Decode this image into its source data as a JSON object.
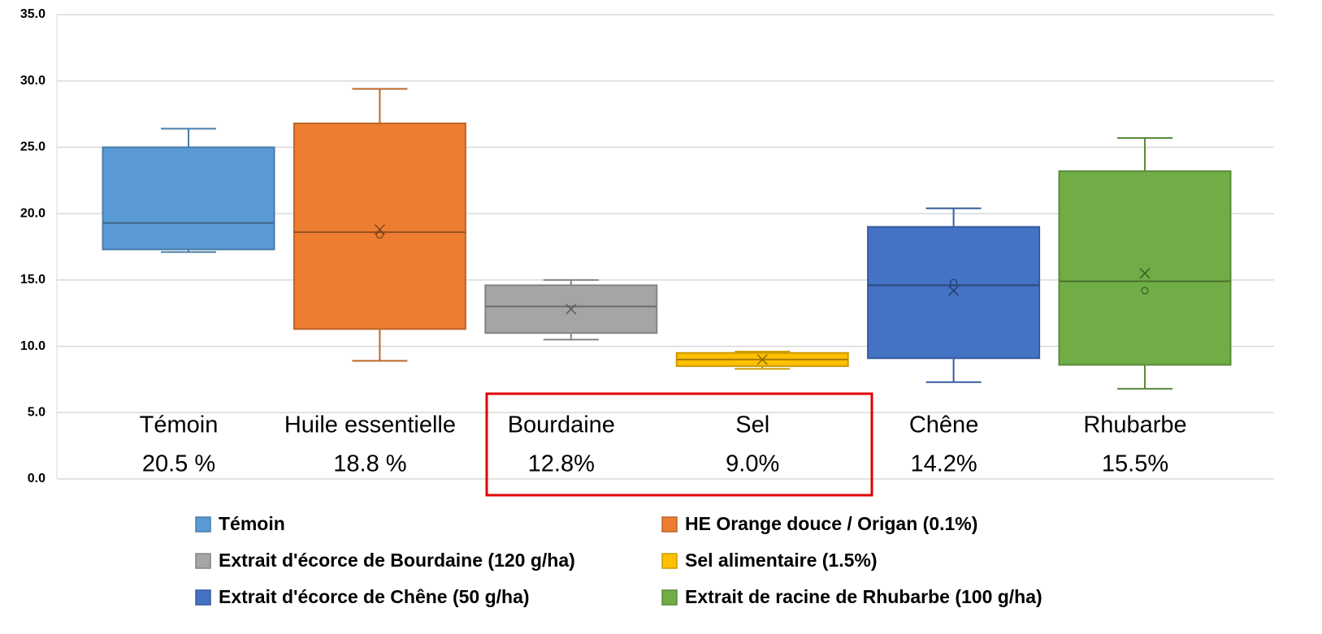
{
  "chart_data": {
    "type": "box",
    "ylim": [
      0,
      35
    ],
    "yticks": [
      {
        "value": 0,
        "label": "0.0"
      },
      {
        "value": 5,
        "label": "5.0"
      },
      {
        "value": 10,
        "label": "10.0"
      },
      {
        "value": 15,
        "label": "15.0"
      },
      {
        "value": 20,
        "label": "20.0"
      },
      {
        "value": 25,
        "label": "25.0"
      },
      {
        "value": 30,
        "label": "30.0"
      },
      {
        "value": 35,
        "label": "35.0"
      }
    ],
    "grid": true,
    "legend": "bottom",
    "series": [
      {
        "name": "Témoin",
        "color": "#5b9bd5",
        "min": 17.1,
        "q1": 17.3,
        "median": 19.3,
        "q3": 25.0,
        "max": 26.4,
        "mean": null,
        "points": []
      },
      {
        "name": "HE Orange douce / Origan (0.1%)",
        "color": "#ed7d31",
        "min": 8.9,
        "q1": 11.3,
        "median": 18.6,
        "q3": 26.8,
        "max": 29.4,
        "mean": 18.8,
        "points": [
          18.4
        ]
      },
      {
        "name": "Extrait d'écorce de Bourdaine (120 g/ha)",
        "color": "#a5a5a5",
        "min": 10.5,
        "q1": 11.0,
        "median": 13.0,
        "q3": 14.6,
        "max": 15.0,
        "mean": 12.8,
        "points": []
      },
      {
        "name": "Sel alimentaire (1.5%)",
        "color": "#ffc000",
        "min": 8.3,
        "q1": 8.5,
        "median": 9.0,
        "q3": 9.5,
        "max": 9.6,
        "mean": 9.0,
        "points": []
      },
      {
        "name": "Extrait d'écorce de Chêne (50 g/ha)",
        "color": "#4472c4",
        "min": 7.3,
        "q1": 9.1,
        "median": 14.6,
        "q3": 19.0,
        "max": 20.4,
        "mean": 14.2,
        "points": [
          14.8
        ]
      },
      {
        "name": "Extrait de racine de Rhubarbe (100 g/ha)",
        "color": "#70ad47",
        "min": 6.8,
        "q1": 8.6,
        "median": 14.9,
        "q3": 23.2,
        "max": 25.7,
        "mean": 15.5,
        "points": [
          14.2
        ]
      }
    ],
    "annotations": [
      {
        "text": "Témoin",
        "subtext": "20.5 %"
      },
      {
        "text": "Huile essentielle",
        "subtext": "18.8 %"
      },
      {
        "text": "Bourdaine",
        "subtext": "12.8%"
      },
      {
        "text": "Sel",
        "subtext": "9.0%"
      },
      {
        "text": "Chêne",
        "subtext": "14.2%"
      },
      {
        "text": "Rhubarbe",
        "subtext": "15.5%"
      }
    ]
  }
}
